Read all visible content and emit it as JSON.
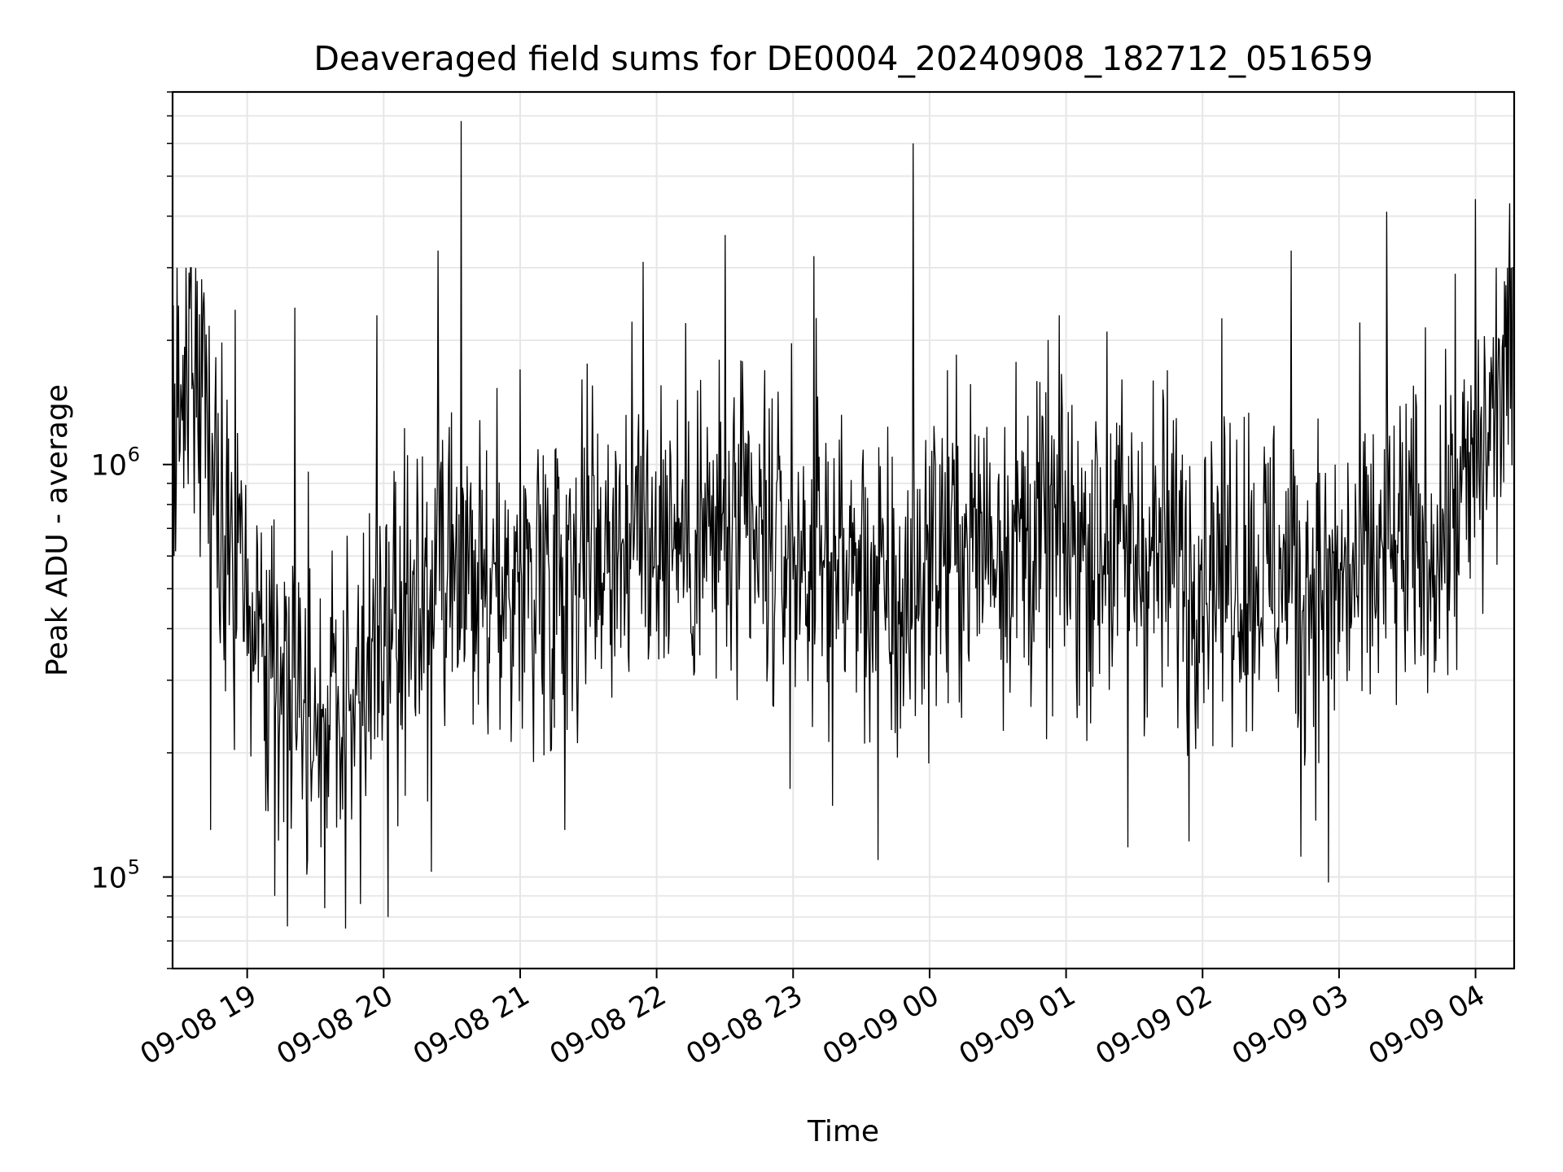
{
  "chart_data": {
    "type": "line",
    "title": "Deaveraged field sums for DE0004_20240908_182712_051659",
    "xlabel": "Time",
    "ylabel": "Peak ADU - average",
    "x_axis": {
      "type": "time",
      "start": "2024-09-08 18:27:12",
      "end": "2024-09-09 04:16:59",
      "ticks": [
        "2024-09-08 19:00",
        "2024-09-08 20:00",
        "2024-09-08 21:00",
        "2024-09-08 22:00",
        "2024-09-08 23:00",
        "2024-09-09 00:00",
        "2024-09-09 01:00",
        "2024-09-09 02:00",
        "2024-09-09 03:00",
        "2024-09-09 04:00"
      ],
      "tick_labels": [
        "09-08 19",
        "09-08 20",
        "09-08 21",
        "09-08 22",
        "09-08 23",
        "09-09 00",
        "09-09 01",
        "09-09 02",
        "09-09 03",
        "09-09 04"
      ]
    },
    "y_axis": {
      "scale": "log",
      "range": [
        60000,
        8000000
      ],
      "major_ticks": [
        100000,
        1000000
      ],
      "tick_labels": [
        {
          "base": "10",
          "exp": "5"
        },
        {
          "base": "10",
          "exp": "6"
        }
      ]
    },
    "grid": true,
    "line_color": "#000000",
    "envelope": {
      "description_units": "time (hours since 2024-09-08 00:00) vs Peak ADU - average",
      "t": [
        18.45,
        18.6,
        18.8,
        19.0,
        19.3,
        19.7,
        20.0,
        20.3,
        20.7,
        21.0,
        21.5,
        22.0,
        22.5,
        23.0,
        23.5,
        23.8,
        24.0,
        24.5,
        25.0,
        25.5,
        26.0,
        26.5,
        27.0,
        27.3,
        27.7,
        28.0,
        28.28
      ],
      "median": [
        1400000,
        1900000,
        800000,
        450000,
        300000,
        250000,
        350000,
        450000,
        480000,
        520000,
        650000,
        700000,
        650000,
        600000,
        550000,
        420000,
        620000,
        680000,
        650000,
        620000,
        600000,
        550000,
        500000,
        580000,
        650000,
        900000,
        2100000
      ]
    },
    "spikes": [
      {
        "t": 19.35,
        "y": 2400000
      },
      {
        "t": 19.95,
        "y": 2300000
      },
      {
        "t": 20.4,
        "y": 3300000
      },
      {
        "t": 20.57,
        "y": 6800000
      },
      {
        "t": 21.0,
        "y": 1700000
      },
      {
        "t": 21.9,
        "y": 3100000
      },
      {
        "t": 22.5,
        "y": 3600000
      },
      {
        "t": 23.15,
        "y": 3200000
      },
      {
        "t": 23.88,
        "y": 6000000
      },
      {
        "t": 24.95,
        "y": 2300000
      },
      {
        "t": 25.3,
        "y": 2100000
      },
      {
        "t": 26.65,
        "y": 3300000
      },
      {
        "t": 27.35,
        "y": 4100000
      },
      {
        "t": 27.85,
        "y": 2900000
      },
      {
        "t": 28.0,
        "y": 4400000
      },
      {
        "t": 28.25,
        "y": 4300000
      }
    ],
    "dips": [
      {
        "t": 18.73,
        "y": 130000
      },
      {
        "t": 19.2,
        "y": 90000
      },
      {
        "t": 19.57,
        "y": 84000
      },
      {
        "t": 19.72,
        "y": 75000
      },
      {
        "t": 19.83,
        "y": 86000
      },
      {
        "t": 20.03,
        "y": 80000
      },
      {
        "t": 20.35,
        "y": 103000
      },
      {
        "t": 21.33,
        "y": 130000
      },
      {
        "t": 23.62,
        "y": 110000
      },
      {
        "t": 25.45,
        "y": 118000
      },
      {
        "t": 25.9,
        "y": 122000
      },
      {
        "t": 26.72,
        "y": 112000
      },
      {
        "t": 26.92,
        "y": 97000
      }
    ]
  }
}
